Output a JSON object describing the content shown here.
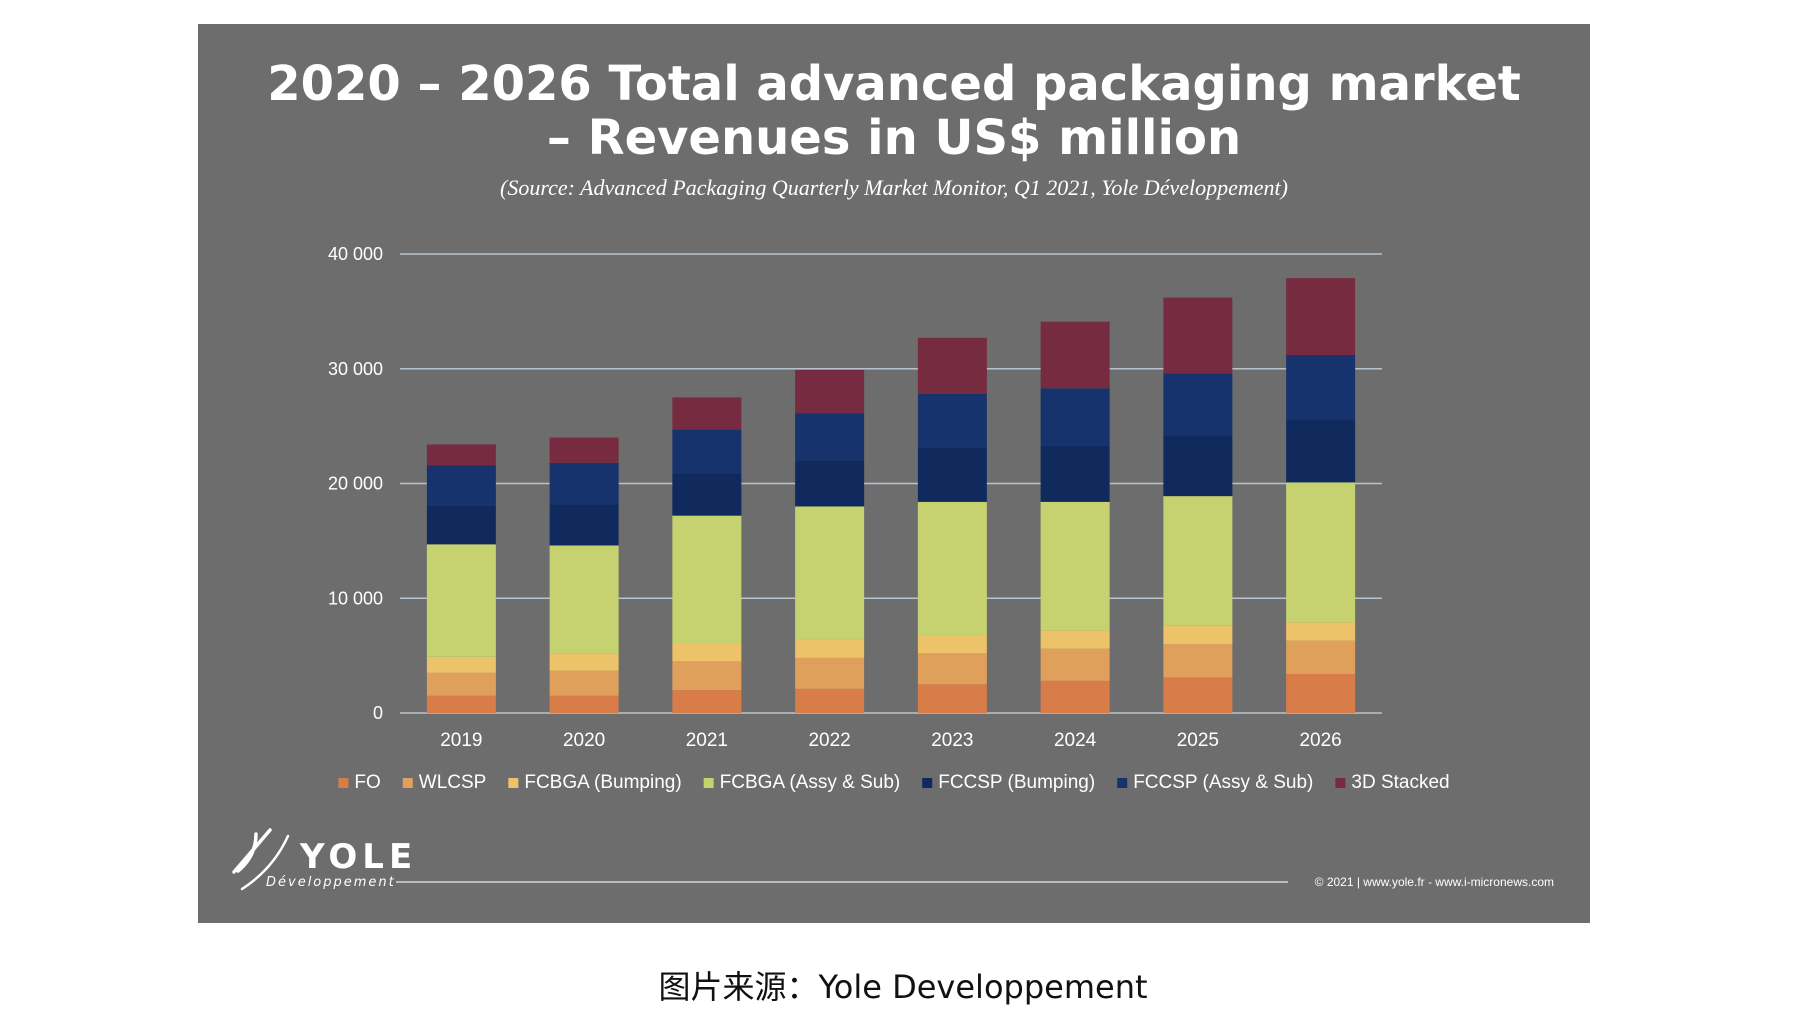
{
  "caption": "图片来源：Yole Developpement",
  "footer": {
    "copyright": "© 2021 | www.yole.fr - www.i-micronews.com",
    "logo_main": "YOLE",
    "logo_sub": "Développement"
  },
  "colors": {
    "background": "#6d6d6d",
    "gridline": "#b7c4cf",
    "text": "#ffffff"
  },
  "chart_data": {
    "type": "bar",
    "stacked": true,
    "title_line1": "2020 – 2026 Total advanced packaging market",
    "title_line2": "– Revenues in US$ million",
    "subtitle": "(Source: Advanced Packaging Quarterly Market Monitor, Q1 2021, Yole Développement)",
    "categories": [
      "2019",
      "2020",
      "2021",
      "2022",
      "2023",
      "2024",
      "2025",
      "2026"
    ],
    "ylim": [
      0,
      40000
    ],
    "yticks": [
      0,
      10000,
      20000,
      30000,
      40000
    ],
    "ytick_labels": [
      "0",
      "10 000",
      "20 000",
      "30 000",
      "40 000"
    ],
    "grid": true,
    "legend_position": "bottom",
    "series": [
      {
        "name": "FO",
        "color": "#d87d4a",
        "values": [
          1500,
          1500,
          2000,
          2100,
          2500,
          2800,
          3100,
          3400
        ]
      },
      {
        "name": "WLCSP",
        "color": "#dfa05c",
        "values": [
          2000,
          2200,
          2500,
          2700,
          2700,
          2800,
          2900,
          2900
        ]
      },
      {
        "name": "FCBGA (Bumping)",
        "color": "#edc36a",
        "values": [
          1400,
          1500,
          1600,
          1600,
          1600,
          1600,
          1600,
          1600
        ]
      },
      {
        "name": "FCBGA (Assy & Sub)",
        "color": "#c6d170",
        "values": [
          9800,
          9400,
          11100,
          11600,
          11600,
          11200,
          11300,
          12200
        ]
      },
      {
        "name": "FCCSP (Bumping)",
        "color": "#102a5e",
        "values": [
          3400,
          3600,
          3700,
          4000,
          4700,
          4900,
          5300,
          5500
        ]
      },
      {
        "name": "FCCSP (Assy & Sub)",
        "color": "#16336e",
        "values": [
          3500,
          3600,
          3800,
          4100,
          4700,
          5000,
          5400,
          5600
        ]
      },
      {
        "name": "3D Stacked",
        "color": "#762b41",
        "values": [
          1800,
          2200,
          2800,
          3800,
          4900,
          5800,
          6600,
          6700
        ]
      }
    ]
  }
}
